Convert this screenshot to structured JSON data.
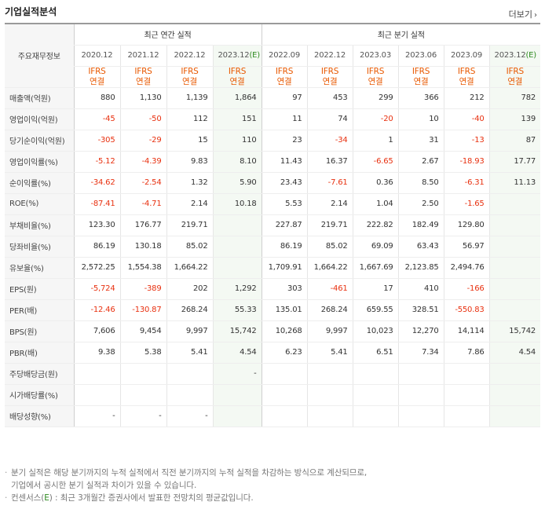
{
  "header": {
    "title": "기업실적분석",
    "more_label": "더보기"
  },
  "table": {
    "corner_label": "주요재무정보",
    "groups": {
      "annual": "최근 연간 실적",
      "quarterly": "최근 분기 실적"
    },
    "periods": [
      "2020.12",
      "2021.12",
      "2022.12",
      "2023.12",
      "2022.09",
      "2022.12",
      "2023.03",
      "2023.06",
      "2023.09",
      "2023.12"
    ],
    "estimate_tag": "(E)",
    "standard_top": "IFRS",
    "standard_bottom": "연결",
    "rows": [
      {
        "label": "매출액(억원)",
        "values": [
          "880",
          "1,130",
          "1,139",
          "1,864",
          "97",
          "453",
          "299",
          "366",
          "212",
          "782"
        ]
      },
      {
        "label": "영업이익(억원)",
        "values": [
          "-45",
          "-50",
          "112",
          "151",
          "11",
          "74",
          "-20",
          "10",
          "-40",
          "139"
        ]
      },
      {
        "label": "당기순이익(억원)",
        "values": [
          "-305",
          "-29",
          "15",
          "110",
          "23",
          "-34",
          "1",
          "31",
          "-13",
          "87"
        ]
      },
      {
        "label": "영업이익률(%)",
        "values": [
          "-5.12",
          "-4.39",
          "9.83",
          "8.10",
          "11.43",
          "16.37",
          "-6.65",
          "2.67",
          "-18.93",
          "17.77"
        ]
      },
      {
        "label": "순이익률(%)",
        "values": [
          "-34.62",
          "-2.54",
          "1.32",
          "5.90",
          "23.43",
          "-7.61",
          "0.36",
          "8.50",
          "-6.31",
          "11.13"
        ]
      },
      {
        "label": "ROE(%)",
        "values": [
          "-87.41",
          "-4.71",
          "2.14",
          "10.18",
          "5.53",
          "2.14",
          "1.04",
          "2.50",
          "-1.65",
          ""
        ]
      },
      {
        "label": "부채비율(%)",
        "values": [
          "123.30",
          "176.77",
          "219.71",
          "",
          "227.87",
          "219.71",
          "222.82",
          "182.49",
          "129.80",
          ""
        ]
      },
      {
        "label": "당좌비율(%)",
        "values": [
          "86.19",
          "130.18",
          "85.02",
          "",
          "86.19",
          "85.02",
          "69.09",
          "63.43",
          "56.97",
          ""
        ]
      },
      {
        "label": "유보율(%)",
        "values": [
          "2,572.25",
          "1,554.38",
          "1,664.22",
          "",
          "1,709.91",
          "1,664.22",
          "1,667.69",
          "2,123.85",
          "2,494.76",
          ""
        ]
      },
      {
        "label": "EPS(원)",
        "values": [
          "-5,724",
          "-389",
          "202",
          "1,292",
          "303",
          "-461",
          "17",
          "410",
          "-166",
          ""
        ]
      },
      {
        "label": "PER(배)",
        "values": [
          "-12.46",
          "-130.87",
          "268.24",
          "55.33",
          "135.01",
          "268.24",
          "659.55",
          "328.51",
          "-550.83",
          ""
        ]
      },
      {
        "label": "BPS(원)",
        "values": [
          "7,606",
          "9,454",
          "9,997",
          "15,742",
          "10,268",
          "9,997",
          "10,023",
          "12,270",
          "14,114",
          "15,742"
        ]
      },
      {
        "label": "PBR(배)",
        "values": [
          "9.38",
          "5.38",
          "5.41",
          "4.54",
          "6.23",
          "5.41",
          "6.51",
          "7.34",
          "7.86",
          "4.54"
        ]
      },
      {
        "label": "주당배당금(원)",
        "values": [
          "",
          "",
          "",
          "-",
          "",
          "",
          "",
          "",
          "",
          ""
        ]
      },
      {
        "label": "시가배당률(%)",
        "values": [
          "",
          "",
          "",
          "",
          "",
          "",
          "",
          "",
          "",
          ""
        ]
      },
      {
        "label": "배당성향(%)",
        "values": [
          "-",
          "-",
          "-",
          "",
          "",
          "",
          "",
          "",
          "",
          ""
        ]
      }
    ]
  },
  "notes": {
    "line1": "분기 실적은 해당 분기까지의 누적 실적에서 직전 분기까지의 누적 실적을 차감하는 방식으로 계산되므로,",
    "line2": "기업에서 공시한 분기 실적과 차이가 있을 수 있습니다.",
    "line3_prefix": "컨센서스(",
    "line3_mark": "E",
    "line3_suffix": ") : 최근 3개월간 증권사에서 발표한 전망치의 평균값입니다.",
    "bullet": "·"
  }
}
